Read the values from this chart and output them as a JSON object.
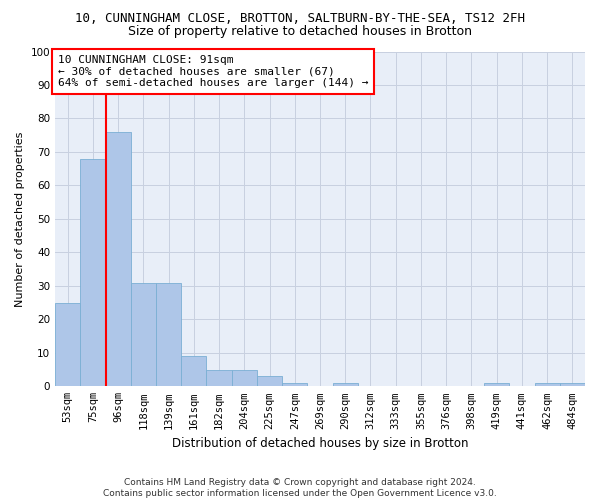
{
  "title1": "10, CUNNINGHAM CLOSE, BROTTON, SALTBURN-BY-THE-SEA, TS12 2FH",
  "title2": "Size of property relative to detached houses in Brotton",
  "xlabel": "Distribution of detached houses by size in Brotton",
  "ylabel": "Number of detached properties",
  "categories": [
    "53sqm",
    "75sqm",
    "96sqm",
    "118sqm",
    "139sqm",
    "161sqm",
    "182sqm",
    "204sqm",
    "225sqm",
    "247sqm",
    "269sqm",
    "290sqm",
    "312sqm",
    "333sqm",
    "355sqm",
    "376sqm",
    "398sqm",
    "419sqm",
    "441sqm",
    "462sqm",
    "484sqm"
  ],
  "values": [
    25,
    68,
    76,
    31,
    31,
    9,
    5,
    5,
    3,
    1,
    0,
    1,
    0,
    0,
    0,
    0,
    0,
    1,
    0,
    1,
    1
  ],
  "bar_color": "#aec6e8",
  "bar_edge_color": "#7aafd4",
  "vline_color": "red",
  "vline_x_index": 1.5,
  "annotation_text": "10 CUNNINGHAM CLOSE: 91sqm\n← 30% of detached houses are smaller (67)\n64% of semi-detached houses are larger (144) →",
  "annotation_box_color": "white",
  "annotation_box_edge_color": "red",
  "ylim": [
    0,
    100
  ],
  "yticks": [
    0,
    10,
    20,
    30,
    40,
    50,
    60,
    70,
    80,
    90,
    100
  ],
  "grid_color": "#c8d0e0",
  "bg_color": "#e8eef8",
  "footer": "Contains HM Land Registry data © Crown copyright and database right 2024.\nContains public sector information licensed under the Open Government Licence v3.0.",
  "title1_fontsize": 9,
  "title2_fontsize": 9,
  "xlabel_fontsize": 8.5,
  "ylabel_fontsize": 8,
  "tick_fontsize": 7.5,
  "annotation_fontsize": 8,
  "footer_fontsize": 6.5
}
